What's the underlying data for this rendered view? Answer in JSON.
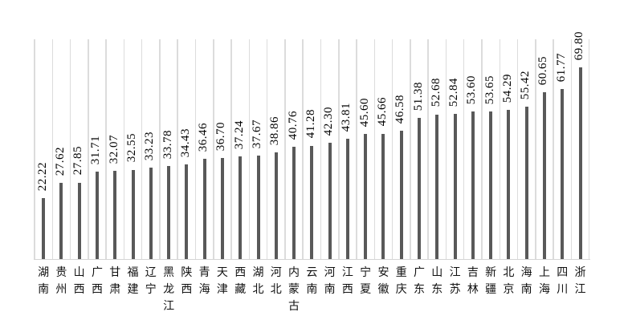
{
  "chart_data": {
    "type": "bar",
    "title": "",
    "xlabel": "",
    "ylabel": "",
    "categories": [
      "湖南",
      "贵州",
      "山西",
      "广西",
      "甘肃",
      "福建",
      "辽宁",
      "黑龙江",
      "陕西",
      "青海",
      "天津",
      "西藏",
      "湖北",
      "河北",
      "内蒙古",
      "云南",
      "河南",
      "江西",
      "宁夏",
      "安徽",
      "重庆",
      "广东",
      "山东",
      "江苏",
      "吉林",
      "新疆",
      "北京",
      "海南",
      "上海",
      "四川",
      "浙江"
    ],
    "values": [
      22.22,
      27.62,
      27.85,
      31.71,
      32.07,
      32.55,
      33.23,
      33.78,
      34.43,
      36.46,
      36.7,
      37.24,
      37.67,
      38.86,
      40.76,
      41.28,
      42.3,
      43.81,
      45.6,
      45.66,
      46.58,
      51.38,
      52.68,
      52.84,
      53.6,
      53.65,
      54.29,
      55.42,
      60.65,
      61.77,
      69.8
    ],
    "value_labels": [
      "22.22",
      "27.62",
      "27.85",
      "31.71",
      "32.07",
      "32.55",
      "33.23",
      "33.78",
      "34.43",
      "36.46",
      "36.70",
      "37.24",
      "37.67",
      "38.86",
      "40.76",
      "41.28",
      "42.30",
      "43.81",
      "45.60",
      "45.66",
      "46.58",
      "51.38",
      "52.68",
      "52.84",
      "53.60",
      "53.65",
      "54.29",
      "55.42",
      "60.65",
      "61.77",
      "69.80"
    ],
    "ylim": [
      0,
      80
    ],
    "grid": "vertical-category-boundaries",
    "legend": "none",
    "value_label_rotation": -90,
    "category_label_orientation": "stacked-vertical",
    "colors": {
      "bar": "#595959",
      "gridline": "#dcdcdc",
      "axis_line": "#d4d4d4",
      "label_text": "#000000",
      "background": "#ffffff"
    }
  }
}
